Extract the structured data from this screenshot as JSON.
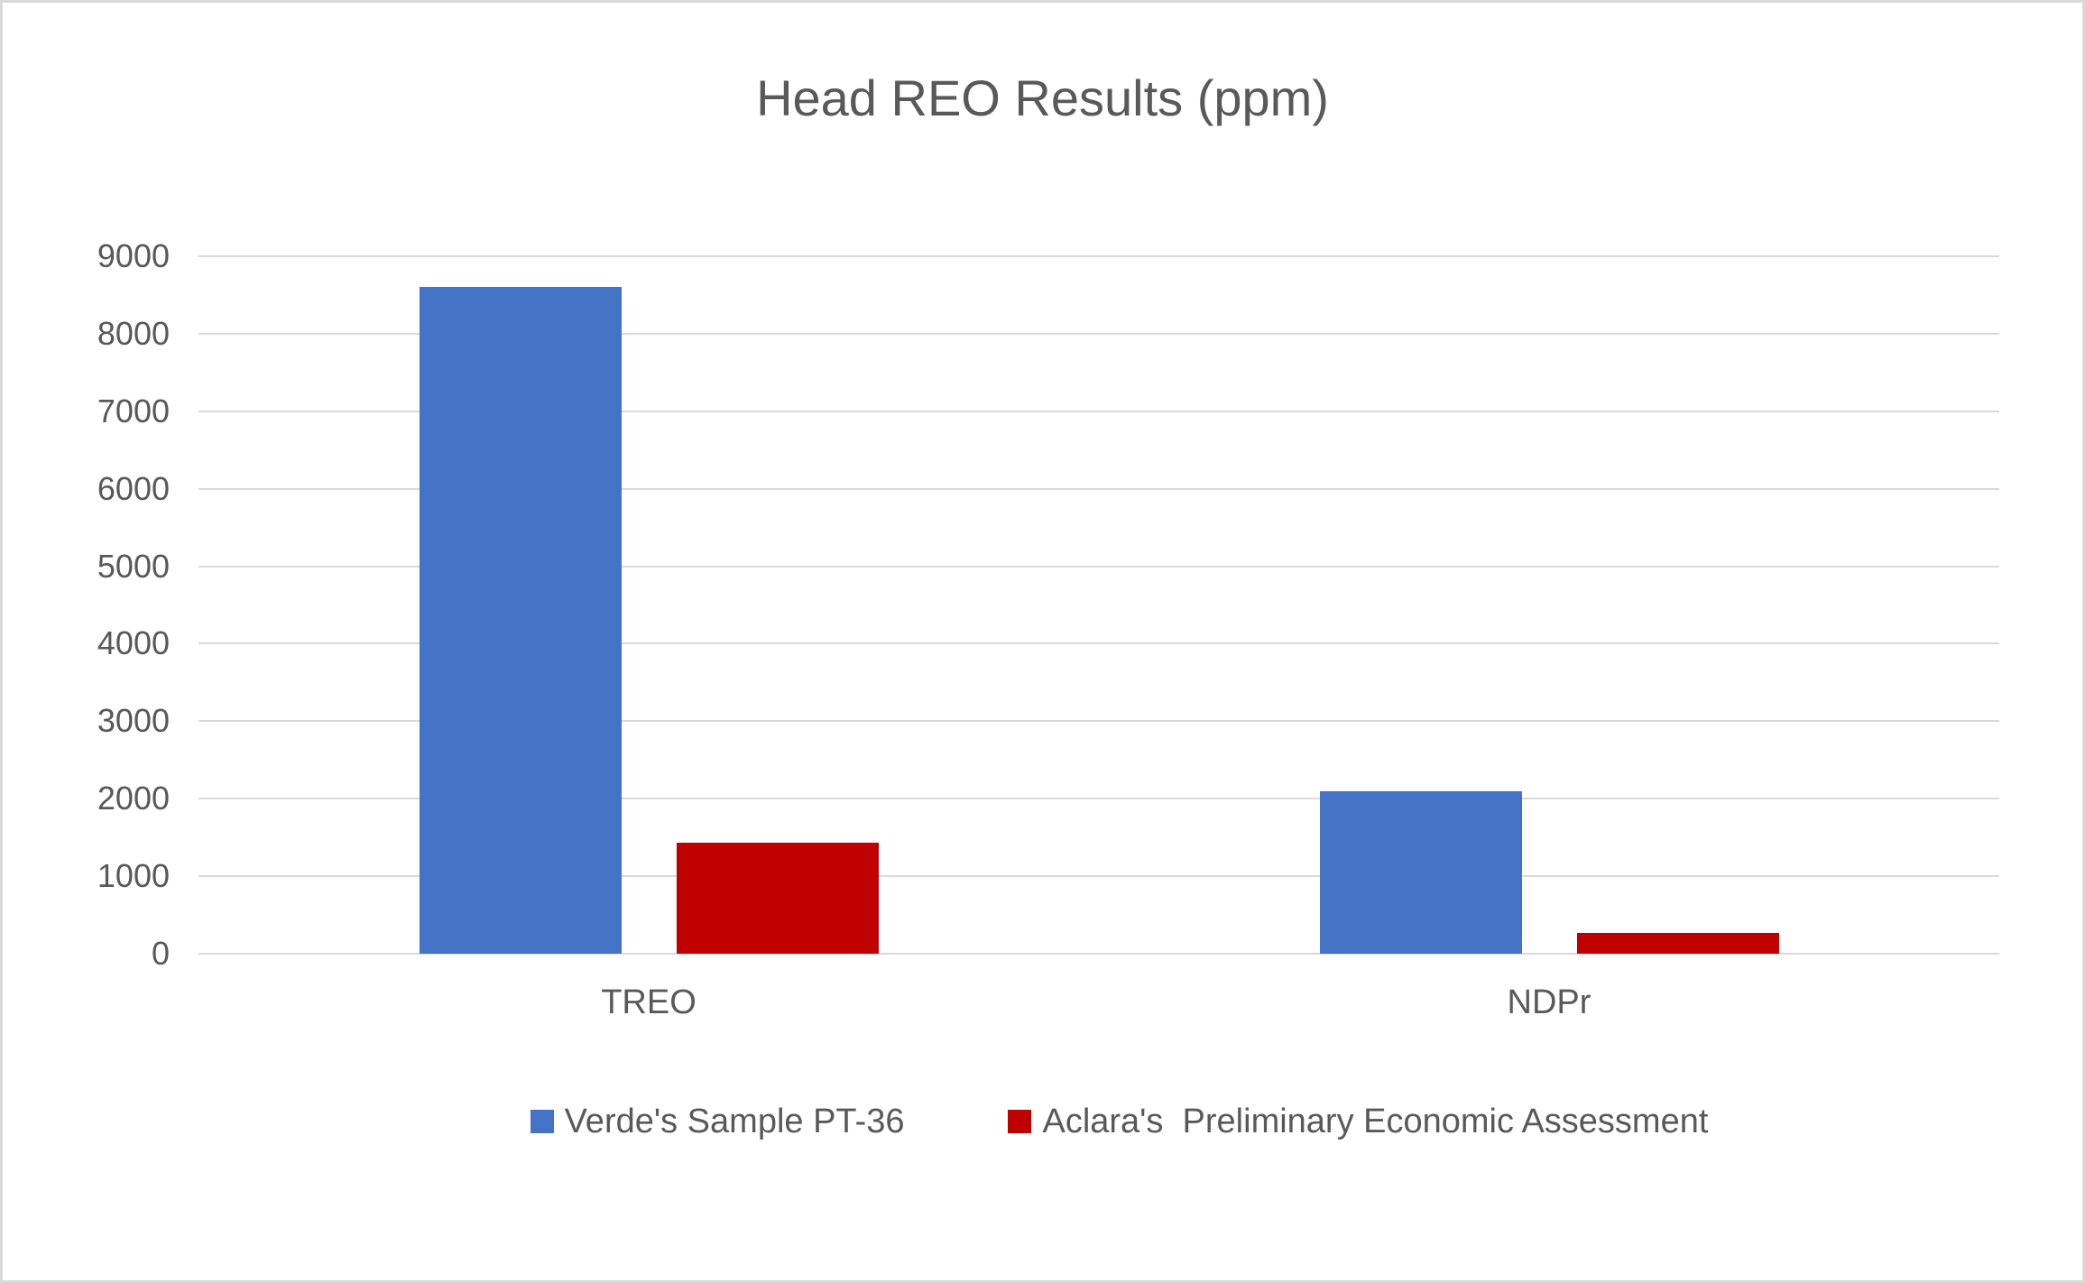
{
  "chart_data": {
    "type": "bar",
    "title": "Head REO Results (ppm)",
    "categories": [
      "TREO",
      "NDPr"
    ],
    "series": [
      {
        "name": "Verde's Sample PT-36",
        "color": "#4472C4",
        "values": [
          8600,
          2100
        ]
      },
      {
        "name": "Aclara's  Preliminary Economic Assessment",
        "color": "#C00000",
        "values": [
          1430,
          270
        ]
      }
    ],
    "xlabel": "",
    "ylabel": "",
    "ylim": [
      0,
      9000
    ],
    "yticks": [
      0,
      1000,
      2000,
      3000,
      4000,
      5000,
      6000,
      7000,
      8000,
      9000
    ],
    "grid": true,
    "legend_position": "bottom"
  },
  "style": {
    "series_blue": "#4472C4",
    "series_red": "#C00000",
    "text_color": "#595959",
    "gridline_color": "#D9D9D9",
    "border_color": "#D9D9D9",
    "background": "#FFFFFF"
  }
}
